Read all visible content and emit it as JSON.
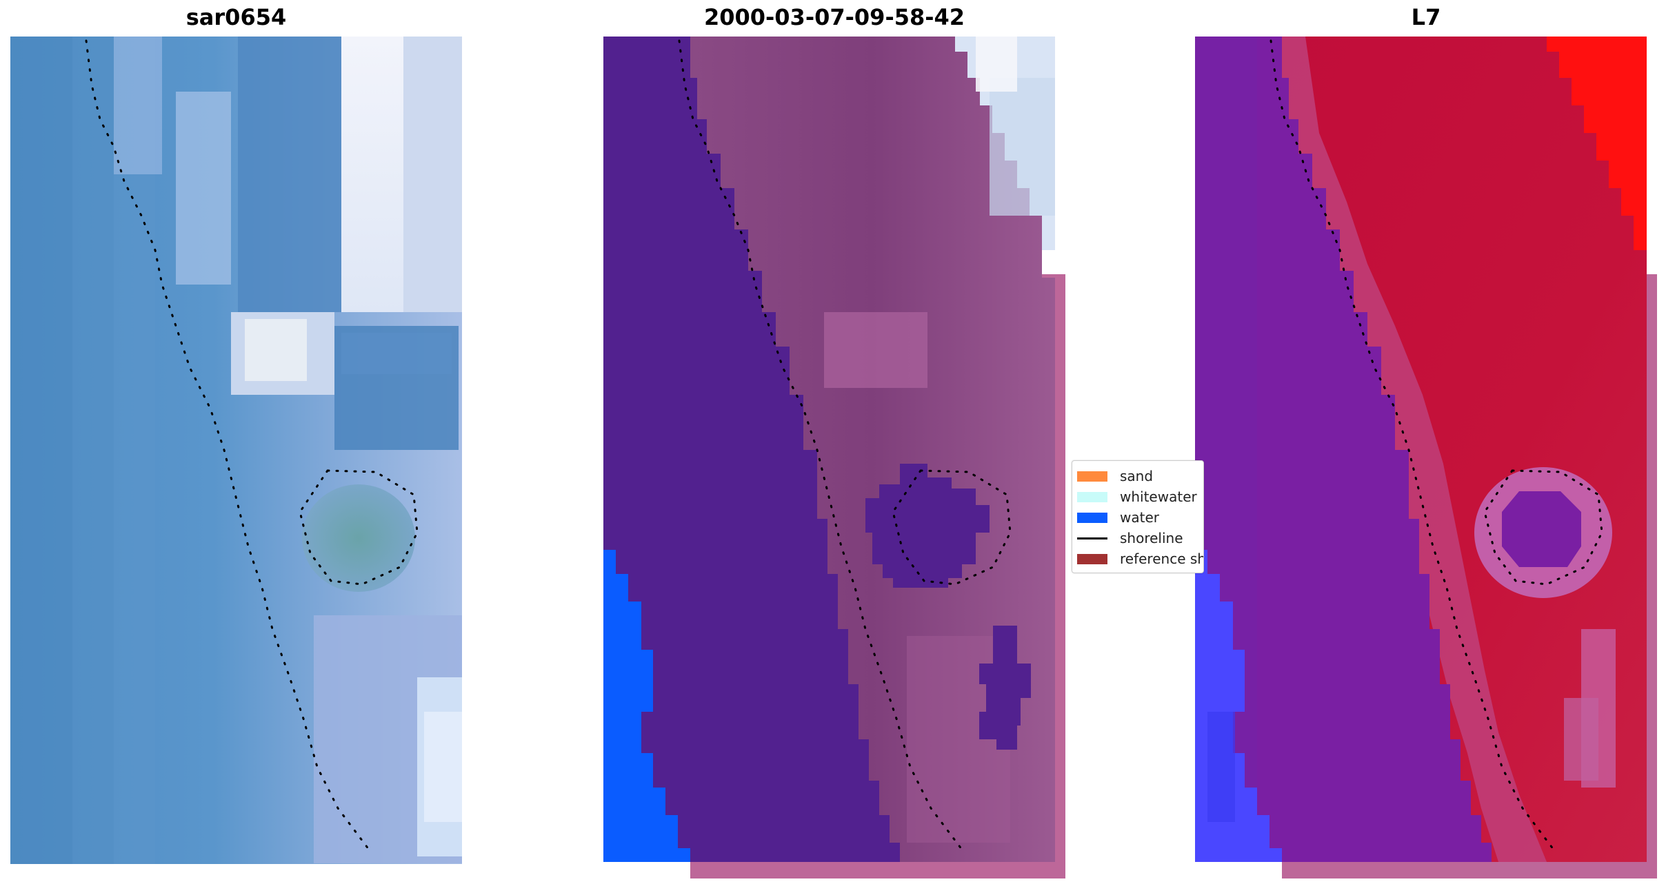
{
  "panels": [
    {
      "title": "sar0654",
      "image": "rgb-satellite-tile"
    },
    {
      "title": "2000-03-07-09-58-42",
      "image": "classified-tile"
    },
    {
      "title": "L7",
      "image": "mndwi-tile"
    }
  ],
  "legend": {
    "items": [
      {
        "label": "sand",
        "color": "#ff8a3d",
        "kind": "patch"
      },
      {
        "label": "whitewater",
        "color": "#c8fbf9",
        "kind": "patch"
      },
      {
        "label": "water",
        "color": "#0a5cff",
        "kind": "patch"
      },
      {
        "label": "shoreline",
        "color": "#000000",
        "kind": "line"
      },
      {
        "label": "reference shoreline",
        "color": "#a13131",
        "kind": "patch"
      }
    ]
  },
  "colors": {
    "water_class": "#0a5cff",
    "land_purple": "#52218f",
    "land_pink": "#8d4f86",
    "pad_pink": "#bd6799",
    "index_red": "#c0102f",
    "index_purple": "#7a1fa3",
    "index_blue": "#4a47ff"
  }
}
